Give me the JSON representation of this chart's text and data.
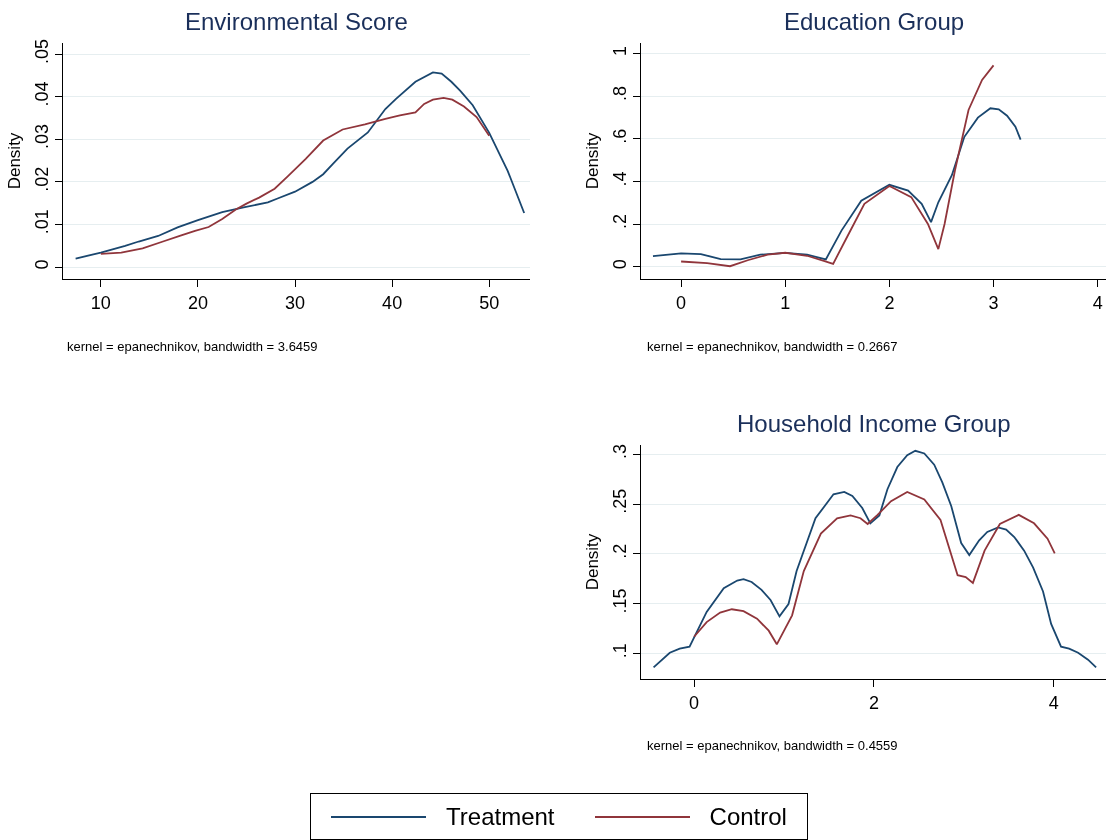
{
  "chart_data": [
    {
      "type": "line",
      "title": "Environmental Score",
      "ylabel": "Density",
      "annotations": [
        "kernel = epanechnikov, bandwidth = 3.6459"
      ],
      "xlim": [
        6.1,
        54.2
      ],
      "ylim": [
        -0.0028,
        0.0526
      ],
      "xticks": [
        10,
        20,
        30,
        40,
        50
      ],
      "yticks": [
        {
          "value": 0,
          "label": "0"
        },
        {
          "value": 0.01,
          "label": ".01"
        },
        {
          "value": 0.02,
          "label": ".02"
        },
        {
          "value": 0.03,
          "label": ".03"
        },
        {
          "value": 0.04,
          "label": ".04"
        },
        {
          "value": 0.05,
          "label": ".05"
        }
      ],
      "grid": "y",
      "series": [
        {
          "color": "#1a476f",
          "x": [
            7.4,
            10,
            12.5,
            13.9,
            15.9,
            17.9,
            20,
            22.5,
            24.7,
            27.2,
            28.2,
            30,
            31.8,
            32.9,
            33.9,
            35.4,
            37.5,
            39.3,
            40.4,
            42.4,
            44.2,
            45.1,
            46.1,
            47,
            48.3,
            50,
            51.9,
            53.6
          ],
          "values": [
            0.002,
            0.0034,
            0.005,
            0.006,
            0.0073,
            0.0093,
            0.011,
            0.0129,
            0.014,
            0.0152,
            0.0161,
            0.0177,
            0.02,
            0.0218,
            0.0242,
            0.0278,
            0.0316,
            0.0371,
            0.0395,
            0.0435,
            0.0457,
            0.0454,
            0.0435,
            0.0414,
            0.038,
            0.0315,
            0.0226,
            0.0127
          ]
        },
        {
          "color": "#90353b",
          "x": [
            10,
            12.1,
            14.3,
            16.4,
            18.2,
            19.7,
            21.1,
            22.5,
            23.9,
            25,
            26.3,
            27.9,
            29.3,
            31.1,
            32.9,
            34.9,
            37.2,
            39.3,
            40.8,
            42.4,
            43.3,
            44.2,
            45.3,
            46.2,
            47.4,
            48.7,
            50
          ],
          "values": [
            0.0031,
            0.0034,
            0.0044,
            0.006,
            0.0074,
            0.0085,
            0.0094,
            0.0113,
            0.0135,
            0.0149,
            0.0163,
            0.0184,
            0.0214,
            0.0254,
            0.0297,
            0.0323,
            0.0335,
            0.0348,
            0.0356,
            0.0363,
            0.0383,
            0.0393,
            0.0397,
            0.0393,
            0.0377,
            0.0352,
            0.0308
          ]
        }
      ]
    },
    {
      "type": "line",
      "title": "Education Group",
      "ylabel": "Density",
      "annotations": [
        "kernel = epanechnikov, bandwidth = 0.2667"
      ],
      "xlim": [
        -0.385,
        4.08
      ],
      "ylim": [
        -0.057,
        1.05
      ],
      "xticks": [
        0,
        1,
        2,
        3,
        4
      ],
      "yticks": [
        {
          "value": 0,
          "label": "0"
        },
        {
          "value": 0.2,
          "label": ".2"
        },
        {
          "value": 0.4,
          "label": ".4"
        },
        {
          "value": 0.6,
          "label": ".6"
        },
        {
          "value": 0.8,
          "label": ".8"
        },
        {
          "value": 1,
          "label": "1"
        }
      ],
      "grid": "y",
      "series": [
        {
          "color": "#1a476f",
          "x": [
            -0.27,
            0,
            0.19,
            0.38,
            0.57,
            0.76,
            1,
            1.21,
            1.39,
            1.54,
            1.73,
            2,
            2.18,
            2.31,
            2.4,
            2.47,
            2.6,
            2.72,
            2.85,
            2.97,
            3.05,
            3.13,
            3.21,
            3.26
          ],
          "values": [
            0.05,
            0.063,
            0.06,
            0.036,
            0.035,
            0.057,
            0.066,
            0.057,
            0.035,
            0.17,
            0.31,
            0.385,
            0.358,
            0.296,
            0.21,
            0.303,
            0.43,
            0.61,
            0.7,
            0.744,
            0.739,
            0.709,
            0.657,
            0.597
          ]
        },
        {
          "color": "#90353b",
          "x": [
            0,
            0.25,
            0.47,
            0.64,
            0.83,
            1,
            1.21,
            1.37,
            1.46,
            1.6,
            1.76,
            2,
            2.21,
            2.37,
            2.47,
            2.53,
            2.63,
            2.76,
            2.89,
            3
          ],
          "values": [
            0.025,
            0.017,
            0.003,
            0.031,
            0.057,
            0.066,
            0.052,
            0.028,
            0.014,
            0.146,
            0.296,
            0.379,
            0.327,
            0.201,
            0.083,
            0.201,
            0.453,
            0.736,
            0.877,
            0.945
          ]
        }
      ]
    },
    {
      "type": "line",
      "title": "Household Income Group",
      "ylabel": "Density",
      "annotations": [
        "kernel = epanechnikov, bandwidth = 0.4559"
      ],
      "xlim": [
        -0.59,
        4.58
      ],
      "ylim": [
        0.0744,
        0.3092
      ],
      "xticks": [
        0,
        2,
        4
      ],
      "yticks": [
        {
          "value": 0.1,
          "label": ".1"
        },
        {
          "value": 0.15,
          "label": ".15"
        },
        {
          "value": 0.2,
          "label": ".2"
        },
        {
          "value": 0.25,
          "label": ".25"
        },
        {
          "value": 0.3,
          "label": ".3"
        }
      ],
      "grid": "y",
      "legend": "bottom",
      "series": [
        {
          "name": "Treatment",
          "color": "#1a476f",
          "x": [
            -0.45,
            -0.27,
            -0.16,
            -0.05,
            0.14,
            0.33,
            0.48,
            0.55,
            0.64,
            0.75,
            0.85,
            0.95,
            1.05,
            1.14,
            1.35,
            1.55,
            1.67,
            1.76,
            1.87,
            1.96,
            2.06,
            2.15,
            2.26,
            2.37,
            2.46,
            2.56,
            2.67,
            2.76,
            2.86,
            2.97,
            3.06,
            3.17,
            3.26,
            3.38,
            3.47,
            3.56,
            3.67,
            3.77,
            3.88,
            3.97,
            4.08,
            4.17,
            4.27,
            4.38,
            4.47
          ],
          "values": [
            0.086,
            0.1007,
            0.1048,
            0.1068,
            0.1417,
            0.1656,
            0.1732,
            0.1745,
            0.1718,
            0.1639,
            0.1537,
            0.1373,
            0.1496,
            0.1827,
            0.2357,
            0.2597,
            0.2621,
            0.258,
            0.246,
            0.2306,
            0.2385,
            0.2648,
            0.2871,
            0.299,
            0.3034,
            0.3007,
            0.2894,
            0.2716,
            0.2477,
            0.2108,
            0.1988,
            0.2135,
            0.222,
            0.2265,
            0.2244,
            0.2169,
            0.2032,
            0.1862,
            0.1622,
            0.1297,
            0.1068,
            0.1048,
            0.1007,
            0.0938,
            0.086
          ]
        },
        {
          "name": "Control",
          "color": "#90353b",
          "x": [
            0,
            0.14,
            0.29,
            0.42,
            0.55,
            0.7,
            0.83,
            0.92,
            1.09,
            1.22,
            1.41,
            1.59,
            1.74,
            1.85,
            1.93,
            2.04,
            2.19,
            2.37,
            2.56,
            2.74,
            2.93,
            3.02,
            3.1,
            3.23,
            3.4,
            3.61,
            3.78,
            3.93,
            4.01
          ],
          "values": [
            0.1168,
            0.1315,
            0.141,
            0.1444,
            0.1424,
            0.1349,
            0.1229,
            0.1092,
            0.1383,
            0.1827,
            0.2203,
            0.2357,
            0.2385,
            0.2357,
            0.2299,
            0.2391,
            0.2528,
            0.2621,
            0.2545,
            0.234,
            0.1786,
            0.1766,
            0.1708,
            0.2032,
            0.2299,
            0.2391,
            0.2306,
            0.2152,
            0.2005
          ]
        }
      ]
    }
  ]
}
